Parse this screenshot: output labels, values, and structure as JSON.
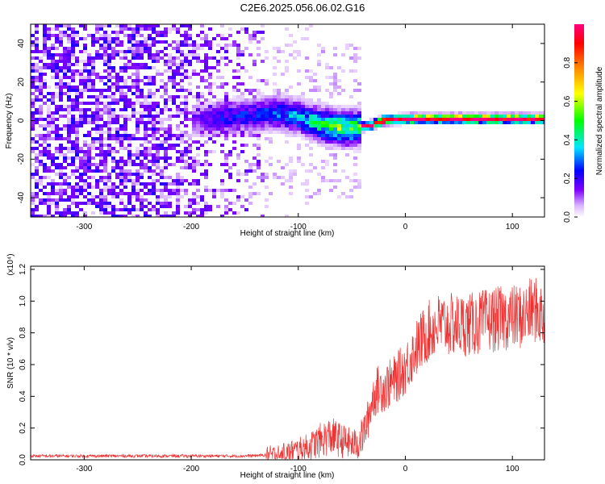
{
  "title": "C2E6.2025.056.06.02.G16",
  "chart_data": [
    {
      "type": "heatmap",
      "title": "C2E6.2025.056.06.02.G16",
      "xlabel": "Height of straight line (km)",
      "ylabel": "Frequency (Hz)",
      "xlim": [
        -350,
        130
      ],
      "ylim": [
        -50,
        50
      ],
      "x_ticks": [
        "-300",
        "-200",
        "-100",
        "0",
        "100"
      ],
      "x_tick_values": [
        -300,
        -200,
        -100,
        0,
        100
      ],
      "y_ticks": [
        "-40",
        "-20",
        "0",
        "20",
        "40"
      ],
      "y_tick_values": [
        -40,
        -20,
        0,
        20,
        40
      ],
      "colorbar": {
        "label": "Normalized spectral amplitude",
        "range": [
          0,
          1
        ],
        "ticks": [
          "0.0",
          "0.2",
          "0.4",
          "0.6",
          "0.8"
        ],
        "tick_values": [
          0.0,
          0.2,
          0.4,
          0.6,
          0.8
        ],
        "colormap": [
          "#ffffff",
          "#d9b3ff",
          "#8000ff",
          "#0000ff",
          "#00e5ff",
          "#00ff00",
          "#ffff00",
          "#ff8000",
          "#ff0000",
          "#ff0080"
        ]
      },
      "features": {
        "broadband_noise_region_km": [
          -350,
          -130
        ],
        "diffuse_signal_region_km": [
          -130,
          -40
        ],
        "narrow_carrier_region_km": [
          -40,
          130
        ],
        "carrier_frequency_hz": 1
      },
      "ridge": {
        "x": [
          -200,
          -180,
          -160,
          -140,
          -120,
          -100,
          -80,
          -60,
          -45,
          -30,
          -20,
          0,
          50,
          100,
          130
        ],
        "freq": [
          0,
          1,
          2,
          3,
          4,
          2,
          -2,
          -4,
          -4,
          -2,
          0,
          1,
          1,
          1,
          1
        ],
        "amplitude": [
          0.15,
          0.2,
          0.25,
          0.25,
          0.3,
          0.35,
          0.45,
          0.55,
          0.5,
          0.6,
          0.9,
          1.0,
          1.0,
          1.0,
          0.95
        ]
      }
    },
    {
      "type": "line",
      "xlabel": "Height of straight line (km)",
      "ylabel": "SNR (10 * v/v)",
      "y_multiplier": "(x10⁴)",
      "xlim": [
        -350,
        130
      ],
      "ylim": [
        0,
        1.22
      ],
      "x_ticks": [
        "-300",
        "-200",
        "-100",
        "0",
        "100"
      ],
      "x_tick_values": [
        -300,
        -200,
        -100,
        0,
        100
      ],
      "y_ticks": [
        "0.0",
        "0.2",
        "0.4",
        "0.6",
        "0.8",
        "1.0",
        "1.2"
      ],
      "y_tick_values": [
        0.0,
        0.2,
        0.4,
        0.6,
        0.8,
        1.0,
        1.2
      ],
      "color": "#ee3333",
      "series": [
        {
          "x": [
            -350,
            -300,
            -250,
            -200,
            -150,
            -120,
            -100,
            -90,
            -80,
            -70,
            -60,
            -50,
            -45,
            -40,
            -35,
            -30,
            -25,
            -20,
            -10,
            0,
            10,
            20,
            30,
            40,
            60,
            80,
            100,
            110,
            120,
            130
          ],
          "y": [
            0.02,
            0.02,
            0.02,
            0.02,
            0.02,
            0.03,
            0.06,
            0.08,
            0.12,
            0.15,
            0.12,
            0.1,
            0.1,
            0.15,
            0.25,
            0.4,
            0.45,
            0.45,
            0.5,
            0.58,
            0.7,
            0.8,
            0.85,
            0.85,
            0.85,
            0.88,
            0.9,
            0.9,
            0.95,
            0.9
          ]
        }
      ]
    }
  ]
}
